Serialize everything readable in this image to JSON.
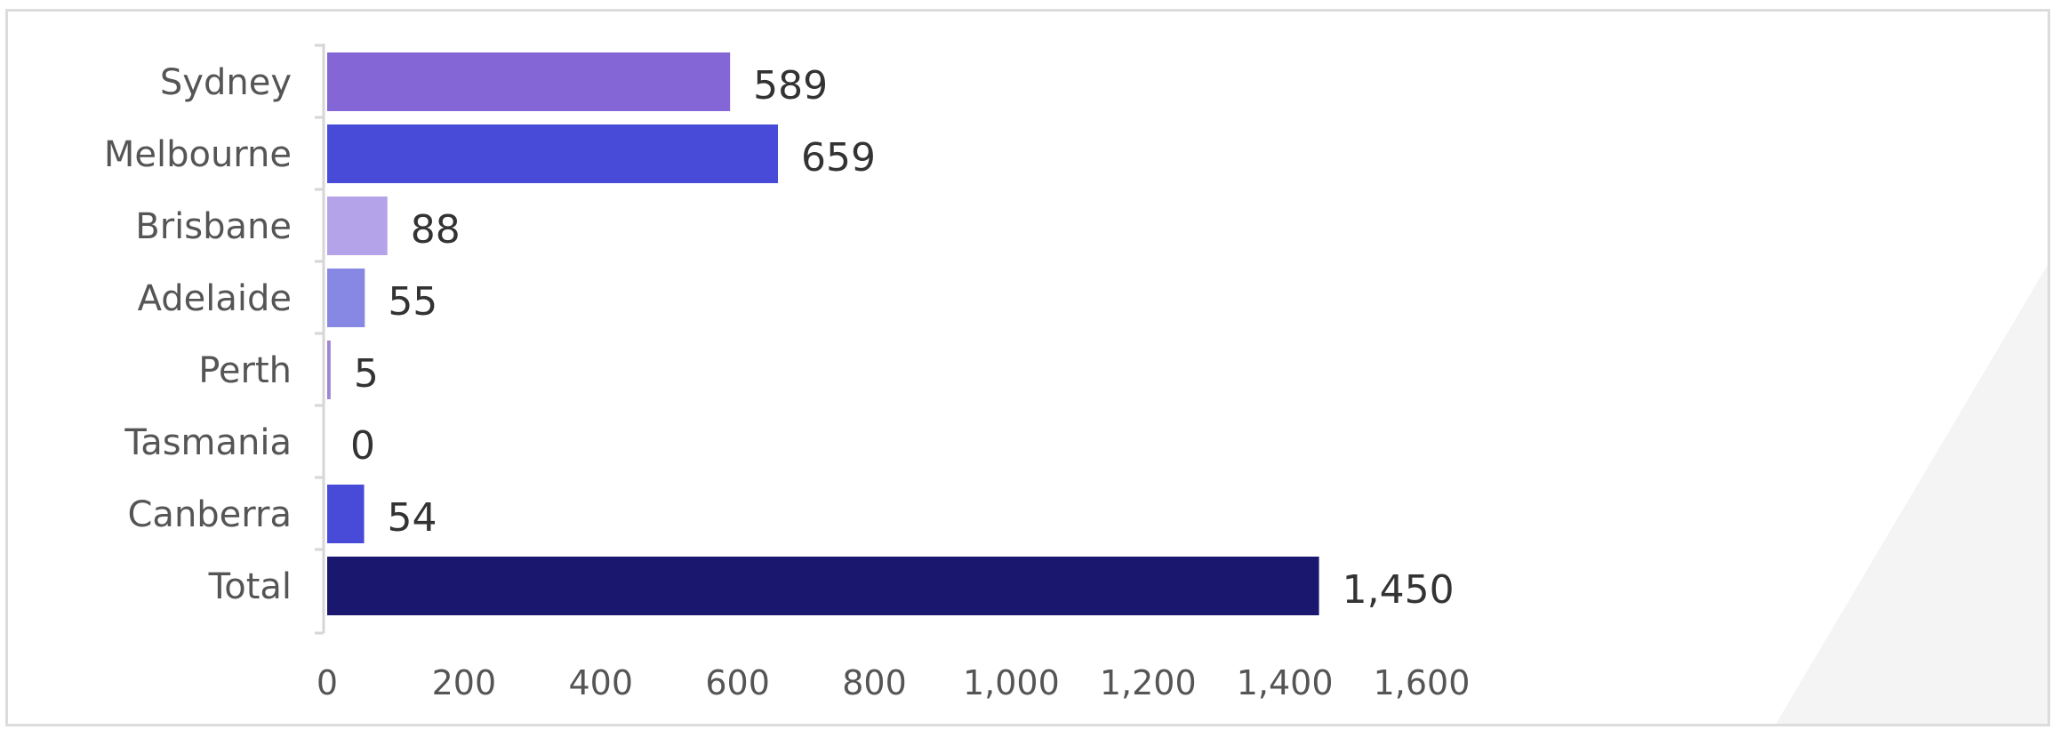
{
  "chart_data": {
    "type": "bar",
    "orientation": "horizontal",
    "categories": [
      "Sydney",
      "Melbourne",
      "Brisbane",
      "Adelaide",
      "Perth",
      "Tasmania",
      "Canberra",
      "Total"
    ],
    "values": [
      589,
      659,
      88,
      55,
      5,
      0,
      54,
      1450
    ],
    "value_labels": [
      "589",
      "659",
      "88",
      "55",
      "5",
      "0",
      "54",
      "1,450"
    ],
    "colors": [
      "#8466d6",
      "#474bd8",
      "#b4a3e8",
      "#8788e4",
      "#9e84d4",
      "#ffffff",
      "#474bd8",
      "#1a186e"
    ],
    "xlim": [
      0,
      1600
    ],
    "x_ticks": [
      0,
      200,
      400,
      600,
      800,
      1000,
      1200,
      1400,
      1600
    ],
    "x_tick_labels": [
      "0",
      "200",
      "400",
      "600",
      "800",
      "1,000",
      "1,200",
      "1,400",
      "1,600"
    ],
    "title": "",
    "xlabel": "",
    "ylabel": "",
    "grid": false,
    "legend": "none"
  }
}
